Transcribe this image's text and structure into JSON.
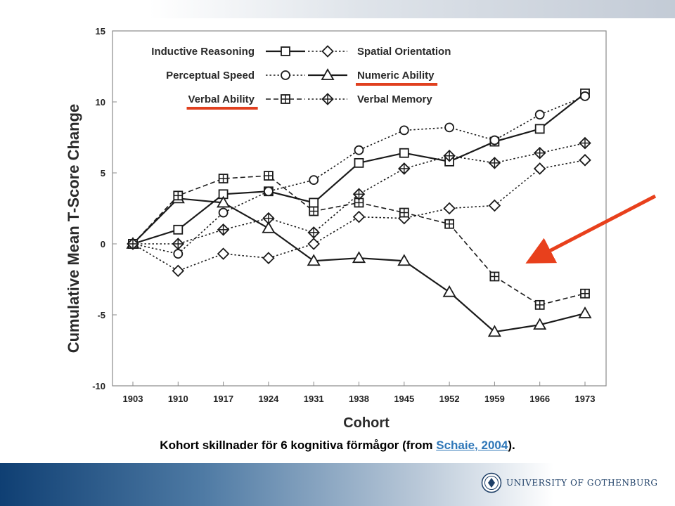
{
  "chart_data": {
    "type": "line",
    "title": "",
    "xlabel": "Cohort",
    "ylabel": "Cumulative Mean T-Score Change",
    "x": [
      "1903",
      "1910",
      "1917",
      "1924",
      "1931",
      "1938",
      "1945",
      "1952",
      "1959",
      "1966",
      "1973"
    ],
    "ylim": [
      -10,
      15
    ],
    "yticks": [
      "15",
      "10",
      "5",
      "0",
      "-5",
      "-10"
    ],
    "grid": false,
    "legend_position": "top-left",
    "series": [
      {
        "name": "Inductive Reasoning",
        "marker": "square",
        "line": "solid",
        "values": [
          0,
          1.0,
          3.5,
          3.7,
          2.9,
          5.7,
          6.4,
          5.8,
          7.2,
          8.1,
          10.6
        ]
      },
      {
        "name": "Spatial Orientation",
        "marker": "diamond",
        "line": "dotted",
        "values": [
          0,
          -1.9,
          -0.7,
          -1.0,
          0.0,
          1.9,
          1.8,
          2.5,
          2.7,
          5.3,
          5.9
        ]
      },
      {
        "name": "Perceptual Speed",
        "marker": "circle",
        "line": "dotted",
        "values": [
          0,
          -0.7,
          2.2,
          3.7,
          4.5,
          6.6,
          8.0,
          8.2,
          7.3,
          9.1,
          10.4
        ]
      },
      {
        "name": "Numeric Ability",
        "marker": "triangle",
        "line": "solid",
        "values": [
          0,
          3.2,
          2.9,
          1.1,
          -1.2,
          -1.0,
          -1.2,
          -3.4,
          -6.2,
          -5.7,
          -4.9
        ]
      },
      {
        "name": "Verbal Ability",
        "marker": "square-plus",
        "line": "dashed",
        "values": [
          0,
          3.4,
          4.6,
          4.8,
          2.3,
          2.9,
          2.2,
          1.4,
          -2.3,
          -4.3,
          -3.5
        ]
      },
      {
        "name": "Verbal Memory",
        "marker": "diamond-plus",
        "line": "dotted",
        "values": [
          0,
          0.0,
          1.0,
          1.8,
          0.8,
          3.5,
          5.3,
          6.2,
          5.7,
          6.4,
          7.1
        ]
      }
    ],
    "highlighted_series": [
      "Numeric Ability",
      "Verbal Ability"
    ],
    "highlight_color": "#e0401f"
  },
  "caption": {
    "text": "Kohort skillnader för 6 kognitiva förmågor (from ",
    "link": "Schaie, 2004",
    "suffix": ")."
  },
  "branding": {
    "logo_text": "UNIVERSITY OF GOTHENBURG",
    "logo_icon": "university-seal-icon",
    "arrow_icon": "red-arrow-icon"
  }
}
